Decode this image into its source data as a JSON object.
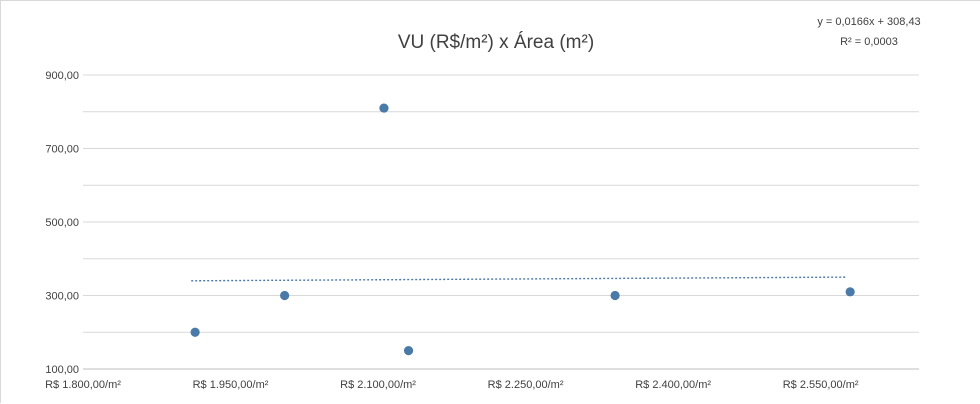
{
  "chart_data": {
    "type": "scatter",
    "title": "VU (R$/m²) x Área (m²)",
    "xlabel": "",
    "ylabel": "",
    "xlim": [
      1800,
      2650
    ],
    "ylim": [
      100,
      900
    ],
    "x_ticks": [
      {
        "value": 1800,
        "label": "R$ 1.800,00/m²"
      },
      {
        "value": 1950,
        "label": "R$ 1.950,00/m²"
      },
      {
        "value": 2100,
        "label": "R$ 2.100,00/m²"
      },
      {
        "value": 2250,
        "label": "R$ 2.250,00/m²"
      },
      {
        "value": 2400,
        "label": "R$ 2.400,00/m²"
      },
      {
        "value": 2550,
        "label": "R$ 2.550,00/m²"
      }
    ],
    "y_ticks": [
      {
        "value": 100,
        "label": "100,00"
      },
      {
        "value": 300,
        "label": "300,00"
      },
      {
        "value": 500,
        "label": "500,00"
      },
      {
        "value": 700,
        "label": "700,00"
      },
      {
        "value": 900,
        "label": "900,00"
      }
    ],
    "gridlines": [
      100,
      200,
      300,
      400,
      500,
      600,
      700,
      800,
      900
    ],
    "grid": true,
    "series": [
      {
        "points": [
          {
            "x": 1914,
            "y": 200
          },
          {
            "x": 2005,
            "y": 300
          },
          {
            "x": 2106,
            "y": 810
          },
          {
            "x": 2131,
            "y": 150
          },
          {
            "x": 2341,
            "y": 300
          },
          {
            "x": 2580,
            "y": 310
          }
        ],
        "color": "#4a7aa8"
      }
    ],
    "trendline": {
      "type": "linear",
      "color": "#4a7aa8",
      "x_range": [
        1910,
        2575
      ],
      "y_range": [
        340,
        350
      ],
      "equation": "y = 0,0166x + 308,43",
      "r_squared": "R² = 0,0003"
    }
  }
}
